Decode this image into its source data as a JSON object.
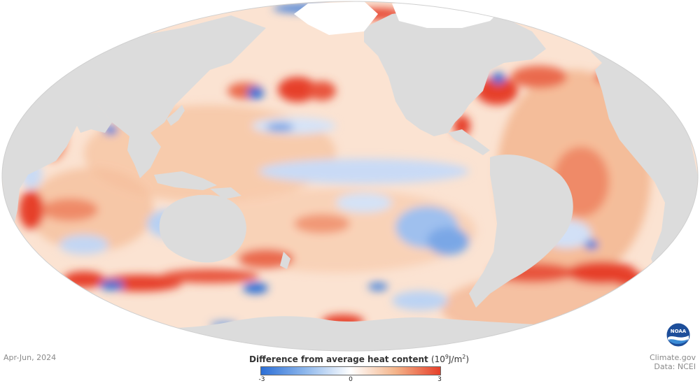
{
  "map": {
    "projection": "Mollweide (Pacific-centered)",
    "land_color": "#dcdcdc",
    "background_color": "#ffffff"
  },
  "date_label": "Apr-Jun, 2024",
  "legend": {
    "title": "Difference from average heat content",
    "unit_prefix": "(10",
    "unit_exp": "9",
    "unit_mid": "J/m",
    "unit_exp2": "2",
    "unit_suffix": ")",
    "min_label": "-3",
    "mid_label": "0",
    "max_label": "3",
    "colors": {
      "negative": "#2c6fd6",
      "neutral": "#ffffff",
      "positive": "#e6402a"
    }
  },
  "credit": {
    "line1": "Climate.gov",
    "line2": "Data: NCEI"
  },
  "logo": {
    "text": "NOAA"
  }
}
